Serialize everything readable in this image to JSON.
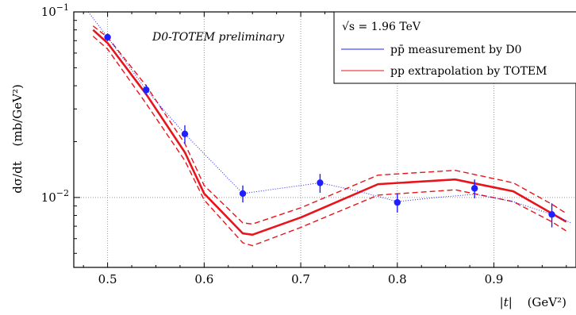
{
  "chart_data": {
    "type": "line",
    "x": [
      0.5,
      0.54,
      0.58,
      0.64,
      0.72,
      0.8,
      0.88,
      0.96
    ],
    "xlabel_var": "|t|",
    "xlabel_unit": "(GeV²)",
    "ylabel_quantity": "dσ/dt",
    "ylabel_unit": "(mb/GeV²)",
    "xlim": [
      0.465,
      0.985
    ],
    "ylim": [
      0.0042,
      0.1
    ],
    "yscale": "log",
    "grid": true,
    "legend_position": "top-right",
    "annotation": "D0-TOTEM preliminary",
    "x_ticks": [
      {
        "value": 0.5,
        "label": "0.5"
      },
      {
        "value": 0.6,
        "label": "0.6"
      },
      {
        "value": 0.7,
        "label": "0.7"
      },
      {
        "value": 0.8,
        "label": "0.8"
      },
      {
        "value": 0.9,
        "label": "0.9"
      }
    ],
    "y_ticks": [
      {
        "value": 0.1,
        "label_base": "10",
        "label_exp": "−1"
      },
      {
        "value": 0.01,
        "label_base": "10",
        "label_exp": "−2"
      }
    ],
    "legend_title": "√s = 1.96 TeV",
    "series": [
      {
        "name": "pp̄ measurement by D0",
        "color": "#1f1fff",
        "style": "points",
        "x": [
          0.5,
          0.54,
          0.58,
          0.64,
          0.72,
          0.8,
          0.88,
          0.96
        ],
        "y": [
          0.073,
          0.038,
          0.022,
          0.0105,
          0.012,
          0.0094,
          0.0112,
          0.0081
        ],
        "y_err_low": [
          0.0035,
          0.0025,
          0.0025,
          0.0011,
          0.0014,
          0.0011,
          0.0013,
          0.0012
        ],
        "y_err_high": [
          0.0035,
          0.0025,
          0.0025,
          0.0011,
          0.0014,
          0.0011,
          0.0013,
          0.0012
        ],
        "trend_x": [
          0.48,
          0.5,
          0.54,
          0.58,
          0.64,
          0.72,
          0.76,
          0.8,
          0.84,
          0.88,
          0.92,
          0.96,
          0.98
        ],
        "trend_y": [
          0.1,
          0.073,
          0.038,
          0.022,
          0.0105,
          0.012,
          0.0108,
          0.0095,
          0.01,
          0.0104,
          0.0095,
          0.0081,
          0.0073
        ]
      },
      {
        "name": "pp extrapolation by TOTEM",
        "color": "#e8141c",
        "style": "band",
        "x": [
          0.485,
          0.5,
          0.54,
          0.58,
          0.6,
          0.64,
          0.65,
          0.7,
          0.78,
          0.86,
          0.92,
          0.96,
          0.975
        ],
        "y": [
          0.08,
          0.068,
          0.036,
          0.0175,
          0.0105,
          0.0064,
          0.0063,
          0.0078,
          0.0118,
          0.0125,
          0.0108,
          0.0082,
          0.0074
        ],
        "y_upper": [
          0.084,
          0.073,
          0.04,
          0.0195,
          0.0116,
          0.0073,
          0.0072,
          0.0088,
          0.0132,
          0.014,
          0.012,
          0.0092,
          0.0082
        ],
        "y_lower": [
          0.074,
          0.063,
          0.032,
          0.0158,
          0.0097,
          0.0057,
          0.0055,
          0.0069,
          0.0103,
          0.011,
          0.0095,
          0.0074,
          0.0066
        ]
      }
    ]
  }
}
